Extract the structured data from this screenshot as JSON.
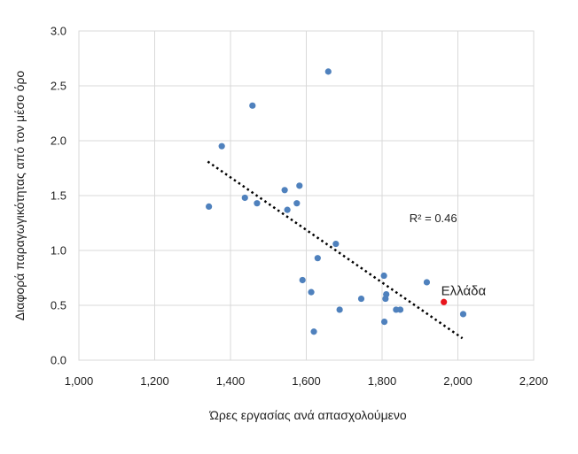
{
  "chart_data": {
    "type": "scatter",
    "xlabel": "Ώρες εργασίας ανά απασχολούμενο",
    "ylabel": "Διαφορά παραγωγικότητας από τον μέσο όρο",
    "xlim": [
      1000,
      2200
    ],
    "ylim": [
      0,
      3.0
    ],
    "x_ticks": [
      "1,000",
      "1,200",
      "1,400",
      "1,600",
      "1,800",
      "2,000",
      "2,200"
    ],
    "y_ticks": [
      "0.0",
      "0.5",
      "1.0",
      "1.5",
      "2.0",
      "2.5",
      "3.0"
    ],
    "grid": true,
    "colors": {
      "points": "#4f81bd",
      "highlight": "#e8141c",
      "trendline": "#000000",
      "grid": "#d9d9d9"
    },
    "points": [
      {
        "x": 1343,
        "y": 1.4
      },
      {
        "x": 1377,
        "y": 1.95
      },
      {
        "x": 1438,
        "y": 1.48
      },
      {
        "x": 1458,
        "y": 2.32
      },
      {
        "x": 1470,
        "y": 1.43
      },
      {
        "x": 1543,
        "y": 1.55
      },
      {
        "x": 1550,
        "y": 1.37
      },
      {
        "x": 1575,
        "y": 1.43
      },
      {
        "x": 1582,
        "y": 1.59
      },
      {
        "x": 1590,
        "y": 0.73
      },
      {
        "x": 1613,
        "y": 0.62
      },
      {
        "x": 1620,
        "y": 0.26
      },
      {
        "x": 1630,
        "y": 0.93
      },
      {
        "x": 1658,
        "y": 2.63
      },
      {
        "x": 1678,
        "y": 1.06
      },
      {
        "x": 1688,
        "y": 0.46
      },
      {
        "x": 1745,
        "y": 0.56
      },
      {
        "x": 1805,
        "y": 0.77
      },
      {
        "x": 1806,
        "y": 0.35
      },
      {
        "x": 1809,
        "y": 0.56
      },
      {
        "x": 1811,
        "y": 0.6
      },
      {
        "x": 1837,
        "y": 0.46
      },
      {
        "x": 1848,
        "y": 0.46
      },
      {
        "x": 1918,
        "y": 0.71
      },
      {
        "x": 2014,
        "y": 0.42
      }
    ],
    "highlight": {
      "label": "Ελλάδα",
      "x": 1963,
      "y": 0.53
    },
    "trendline": {
      "x_start": 1340,
      "y_start": 1.81,
      "x_end": 2012,
      "y_end": 0.2
    },
    "r2_label": "R² = 0.46",
    "r2_position": {
      "x": 1998,
      "y": 1.26
    }
  }
}
